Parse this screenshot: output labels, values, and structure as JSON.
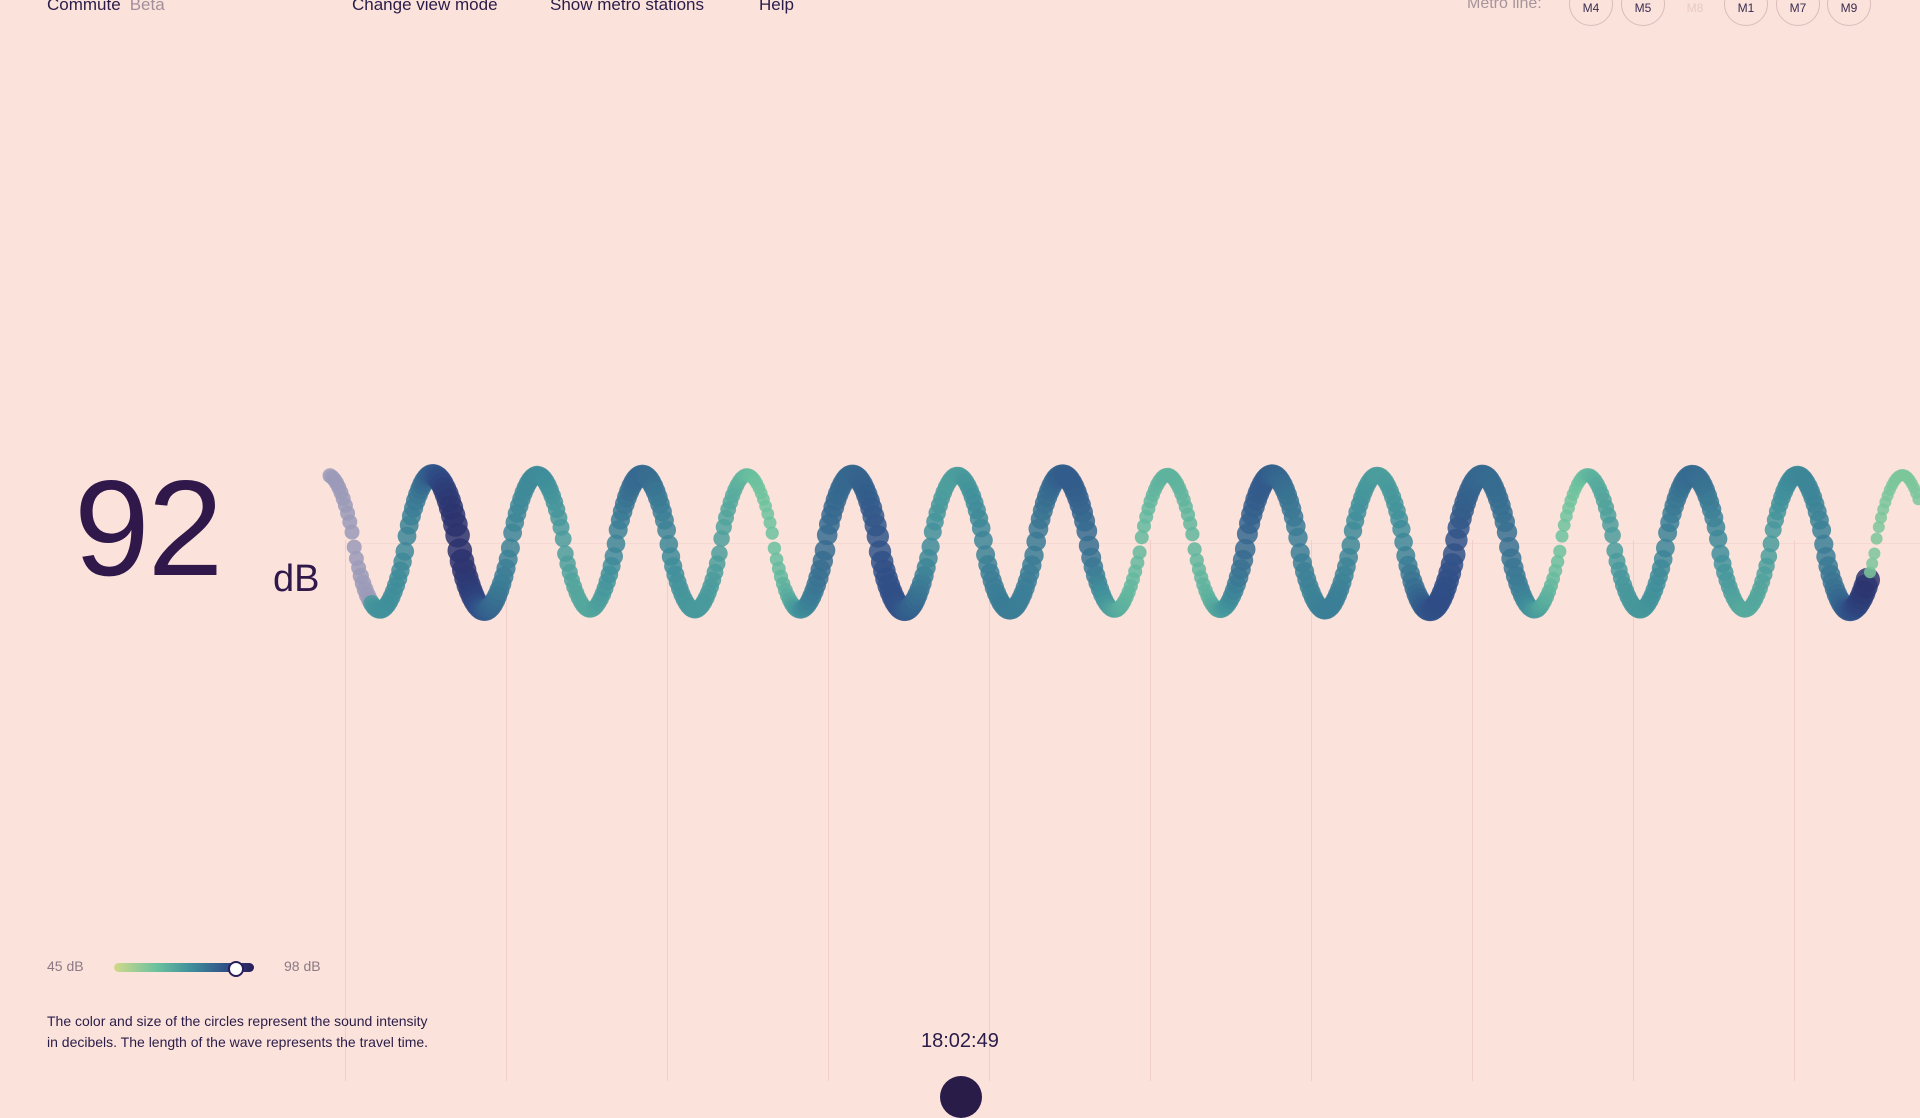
{
  "header": {
    "app_name": "Commute",
    "badge": "Beta",
    "nav": [
      "Change view mode",
      "Show metro stations",
      "Help"
    ],
    "metro_label": "Metro line:",
    "metro_lines": [
      {
        "label": "M4",
        "enabled": true
      },
      {
        "label": "M5",
        "enabled": true
      },
      {
        "label": "M8",
        "enabled": false
      },
      {
        "label": "M1",
        "enabled": true
      },
      {
        "label": "M7",
        "enabled": true
      },
      {
        "label": "M9",
        "enabled": true
      }
    ]
  },
  "reading": {
    "value": "92",
    "unit": "dB"
  },
  "legend": {
    "min_label": "45 dB",
    "max_label": "98 dB",
    "slider_value_db": 92,
    "min_db": 45,
    "max_db": 98
  },
  "description": "The color and size of the circles represent the sound intensity in decibels. The length of the wave represents the travel time.",
  "timestamp": "18:02:49",
  "colors": {
    "background": "#fbe3dc",
    "text": "#2a1c48",
    "low_db": "#d2d88a",
    "mid_db": "#4da39e",
    "high_db": "#2a1c58"
  }
}
